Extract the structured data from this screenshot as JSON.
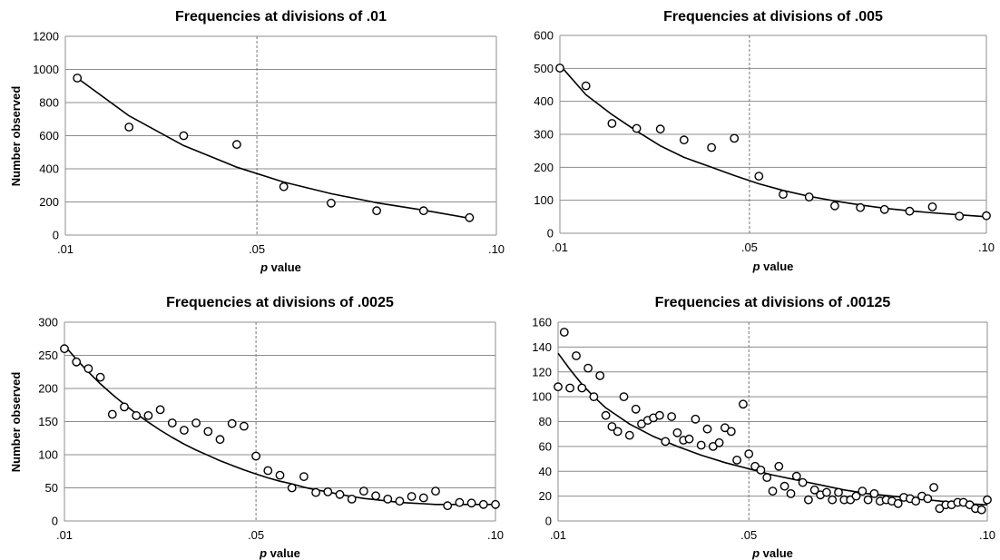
{
  "chart_data": [
    {
      "type": "scatter",
      "title": "Frequencies at divisions of .01",
      "xlabel_italic": "p",
      "xlabel_rest": " value",
      "ylabel": "Number observed",
      "xlim": [
        0.01,
        0.1
      ],
      "ylim": [
        0,
        1200
      ],
      "y_ticks": [
        0,
        200,
        400,
        600,
        800,
        1000,
        1200
      ],
      "x_ticks": [
        0.01,
        0.05,
        0.1
      ],
      "x_tick_labels": [
        ".01",
        ".05",
        ".10"
      ],
      "grid": true,
      "reference_line_x": 0.05,
      "series": [
        {
          "x": [
            0.0125,
            0.0233,
            0.0347,
            0.0458,
            0.0556,
            0.0655,
            0.075,
            0.0848,
            0.0944
          ],
          "y": [
            948,
            652,
            600,
            547,
            292,
            193,
            147,
            147,
            105
          ]
        }
      ],
      "fit": {
        "x": [
          0.0125,
          0.0233,
          0.0347,
          0.0458,
          0.0556,
          0.0655,
          0.075,
          0.0848,
          0.0944
        ],
        "y": [
          948,
          720,
          540,
          410,
          320,
          250,
          195,
          150,
          102
        ]
      }
    },
    {
      "type": "scatter",
      "title": "Frequencies at divisions of .005",
      "xlabel_italic": "p",
      "xlabel_rest": " value",
      "ylabel": "",
      "xlim": [
        0.01,
        0.1
      ],
      "ylim": [
        0,
        600
      ],
      "y_ticks": [
        0,
        100,
        200,
        300,
        400,
        500,
        600
      ],
      "x_ticks": [
        0.01,
        0.05,
        0.1
      ],
      "x_tick_labels": [
        ".01",
        ".05",
        ".10"
      ],
      "grid": true,
      "reference_line_x": 0.05,
      "series": [
        {
          "x": [
            0.01,
            0.0155,
            0.021,
            0.0262,
            0.0312,
            0.0362,
            0.042,
            0.0468,
            0.052,
            0.0571,
            0.0626,
            0.068,
            0.0734,
            0.0785,
            0.0838,
            0.0886,
            0.0943,
            0.1
          ],
          "y": [
            501,
            447,
            333,
            318,
            316,
            283,
            260,
            288,
            173,
            118,
            110,
            83,
            78,
            72,
            67,
            80,
            52,
            53
          ]
        }
      ],
      "fit": {
        "x": [
          0.01,
          0.0155,
          0.021,
          0.0262,
          0.0312,
          0.0362,
          0.042,
          0.0468,
          0.052,
          0.0571,
          0.0626,
          0.068,
          0.0734,
          0.0785,
          0.0838,
          0.0886,
          0.0943,
          0.1
        ],
        "y": [
          510,
          420,
          360,
          310,
          265,
          230,
          200,
          175,
          150,
          130,
          112,
          98,
          86,
          76,
          68,
          62,
          56,
          50
        ]
      }
    },
    {
      "type": "scatter",
      "title": "Frequencies at divisions of .0025",
      "xlabel_italic": "p",
      "xlabel_rest": " value",
      "ylabel": "Number observed",
      "xlim": [
        0.01,
        0.1
      ],
      "ylim": [
        0,
        300
      ],
      "y_ticks": [
        0,
        50,
        100,
        150,
        200,
        250,
        300
      ],
      "x_ticks": [
        0.01,
        0.05,
        0.1
      ],
      "x_tick_labels": [
        ".01",
        ".05",
        ".10"
      ],
      "grid": true,
      "reference_line_x": 0.05,
      "series": [
        {
          "x": [
            0.01,
            0.0125,
            0.015,
            0.0175,
            0.02,
            0.0225,
            0.025,
            0.0275,
            0.03,
            0.0325,
            0.035,
            0.0375,
            0.04,
            0.0425,
            0.045,
            0.0475,
            0.05,
            0.0525,
            0.055,
            0.0575,
            0.06,
            0.0625,
            0.065,
            0.0675,
            0.07,
            0.0725,
            0.075,
            0.0775,
            0.08,
            0.0825,
            0.085,
            0.0875,
            0.09,
            0.0925,
            0.095,
            0.0975,
            0.1
          ],
          "y": [
            260,
            240,
            230,
            217,
            161,
            172,
            159,
            159,
            168,
            148,
            137,
            148,
            135,
            123,
            147,
            143,
            98,
            76,
            69,
            50,
            67,
            43,
            44,
            40,
            33,
            45,
            38,
            33,
            30,
            37,
            35,
            45,
            23,
            28,
            27,
            25,
            25
          ]
        }
      ],
      "fit": {
        "x": [
          0.01,
          0.0125,
          0.015,
          0.0175,
          0.02,
          0.0225,
          0.025,
          0.0275,
          0.03,
          0.0325,
          0.035,
          0.0375,
          0.04,
          0.0425,
          0.045,
          0.0475,
          0.05,
          0.0525,
          0.055,
          0.0575,
          0.06,
          0.0625,
          0.065,
          0.0675,
          0.07,
          0.0725,
          0.075,
          0.0775,
          0.08,
          0.0825,
          0.085,
          0.0875,
          0.09,
          0.0925,
          0.095,
          0.0975,
          0.1
        ],
        "y": [
          265,
          244,
          225,
          207,
          191,
          176,
          162,
          149,
          137,
          126,
          116,
          107,
          99,
          91,
          84,
          77,
          71,
          65,
          60,
          56,
          51,
          47,
          44,
          40,
          37,
          34,
          32,
          30,
          28,
          27,
          26,
          25,
          25,
          25,
          25,
          25,
          25
        ]
      }
    },
    {
      "type": "scatter",
      "title": "Frequencies at divisions of .00125",
      "xlabel_italic": "p",
      "xlabel_rest": " value",
      "ylabel": "",
      "xlim": [
        0.01,
        0.1
      ],
      "ylim": [
        0,
        160
      ],
      "y_ticks": [
        0,
        20,
        40,
        60,
        80,
        100,
        120,
        140,
        160
      ],
      "x_ticks": [
        0.01,
        0.05,
        0.1
      ],
      "x_tick_labels": [
        ".01",
        ".05",
        ".10"
      ],
      "grid": true,
      "reference_line_x": 0.05,
      "series": [
        {
          "x": [
            0.01,
            0.0113,
            0.0125,
            0.0138,
            0.015,
            0.0163,
            0.0175,
            0.0188,
            0.02,
            0.0213,
            0.0225,
            0.0238,
            0.025,
            0.0263,
            0.0275,
            0.0288,
            0.03,
            0.0313,
            0.0325,
            0.0338,
            0.035,
            0.0363,
            0.0375,
            0.0388,
            0.04,
            0.0413,
            0.0425,
            0.0438,
            0.045,
            0.0463,
            0.0475,
            0.0488,
            0.05,
            0.0513,
            0.0525,
            0.0538,
            0.055,
            0.0563,
            0.0575,
            0.0588,
            0.06,
            0.0613,
            0.0625,
            0.0638,
            0.065,
            0.0663,
            0.0675,
            0.0688,
            0.07,
            0.0713,
            0.0725,
            0.0738,
            0.075,
            0.0763,
            0.0775,
            0.0788,
            0.08,
            0.0813,
            0.0825,
            0.0838,
            0.085,
            0.0863,
            0.0875,
            0.0888,
            0.09,
            0.0913,
            0.0925,
            0.0938,
            0.095,
            0.0963,
            0.0975,
            0.0988,
            0.1
          ],
          "y": [
            108,
            152,
            107,
            133,
            107,
            123,
            100,
            117,
            85,
            76,
            72,
            100,
            69,
            90,
            78,
            81,
            83,
            85,
            64,
            84,
            71,
            65,
            66,
            82,
            61,
            74,
            60,
            63,
            75,
            72,
            49,
            94,
            54,
            44,
            41,
            35,
            24,
            44,
            28,
            22,
            36,
            31,
            17,
            25,
            21,
            23,
            17,
            23,
            17,
            17,
            20,
            24,
            17,
            22,
            16,
            17,
            16,
            14,
            19,
            18,
            16,
            20,
            18,
            27,
            10,
            13,
            13,
            15,
            15,
            13,
            10,
            9,
            17
          ]
        }
      ],
      "fit": {
        "x": [
          0.01,
          0.0125,
          0.015,
          0.0175,
          0.02,
          0.025,
          0.03,
          0.035,
          0.04,
          0.045,
          0.05,
          0.055,
          0.06,
          0.065,
          0.07,
          0.075,
          0.08,
          0.085,
          0.09,
          0.095,
          0.1
        ],
        "y": [
          135,
          122,
          110,
          100,
          91,
          78,
          68,
          60,
          53,
          47,
          42,
          37,
          33,
          29,
          25,
          22,
          20,
          18,
          16,
          14,
          13
        ]
      }
    }
  ]
}
